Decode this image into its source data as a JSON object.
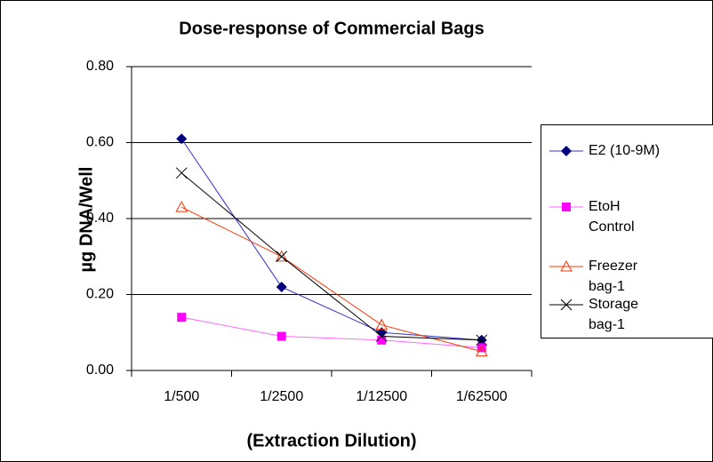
{
  "chart_data": {
    "type": "line",
    "title": "Dose-response of Commercial Bags",
    "x_label": "(Extraction Dilution)",
    "y_label": "µg DNA/Well",
    "categories": [
      "1/500",
      "1/2500",
      "1/12500",
      "1/62500"
    ],
    "series": [
      {
        "name": "E2 (10-9M)",
        "color": "#000080",
        "marker": "diamond",
        "values": [
          0.61,
          0.22,
          0.1,
          0.08
        ]
      },
      {
        "name": "EtoH\nControl",
        "color": "#ff00ff",
        "marker": "square",
        "values": [
          0.14,
          0.09,
          0.08,
          0.06
        ]
      },
      {
        "name": "Freezer\nbag-1",
        "color": "#ff3300",
        "marker": "triangle",
        "values": [
          0.43,
          0.3,
          0.12,
          0.05
        ]
      },
      {
        "name": "Storage\nbag-1",
        "color": "#000000",
        "marker": "x",
        "values": [
          0.52,
          0.3,
          0.09,
          0.08
        ]
      }
    ],
    "ylim": [
      0,
      0.8
    ],
    "yticks": [
      {
        "value": 0,
        "label": "0.00"
      },
      {
        "value": 0.2,
        "label": "0.20"
      },
      {
        "value": 0.4,
        "label": "0.40"
      },
      {
        "value": 0.6,
        "label": "0.60"
      },
      {
        "value": 0.8,
        "label": "0.80"
      }
    ],
    "grid": true,
    "legend": "right"
  }
}
